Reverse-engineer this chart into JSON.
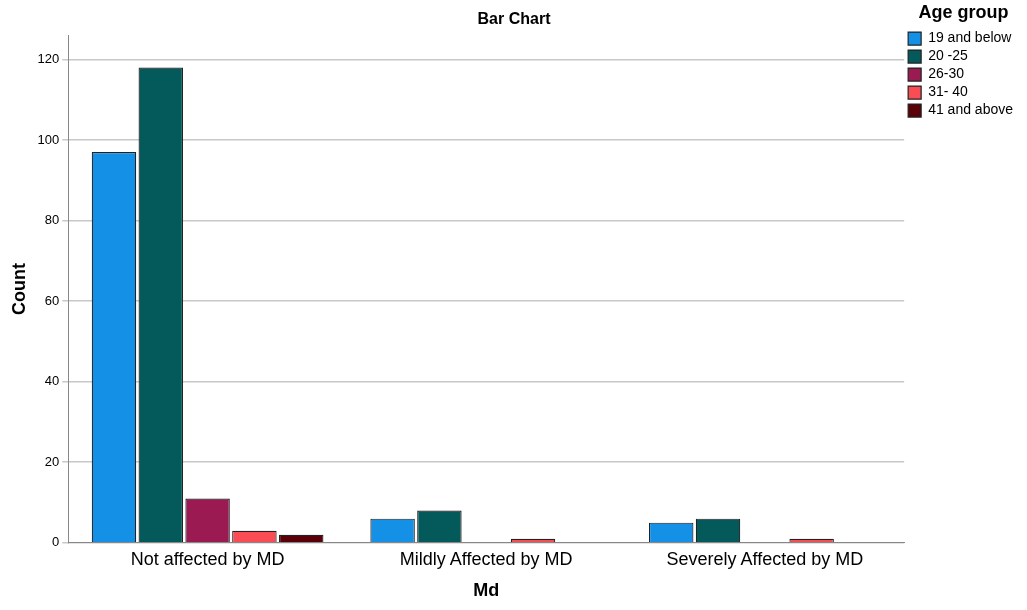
{
  "chart_data": {
    "type": "bar",
    "title": "Bar Chart",
    "xlabel": "Md",
    "ylabel": "Count",
    "legend_title": "Age group",
    "categories": [
      "Not affected by MD",
      "Mildly Affected by MD",
      "Severely Affected by MD"
    ],
    "series": [
      {
        "name": "19 and below",
        "color": "#1490e6",
        "values": [
          97,
          6,
          5
        ]
      },
      {
        "name": "20 -25",
        "color": "#045a5a",
        "values": [
          118,
          8,
          6
        ]
      },
      {
        "name": "26-30",
        "color": "#9c1a52",
        "values": [
          11,
          null,
          null
        ]
      },
      {
        "name": "31- 40",
        "color": "#fa4c55",
        "values": [
          3,
          1,
          1
        ]
      },
      {
        "name": "41 and above",
        "color": "#5a0008",
        "values": [
          2,
          null,
          null
        ]
      }
    ],
    "ylim": [
      0,
      126
    ],
    "yticks": [
      0,
      20,
      40,
      60,
      80,
      100,
      120
    ],
    "grid": "y",
    "legend": "top right"
  }
}
